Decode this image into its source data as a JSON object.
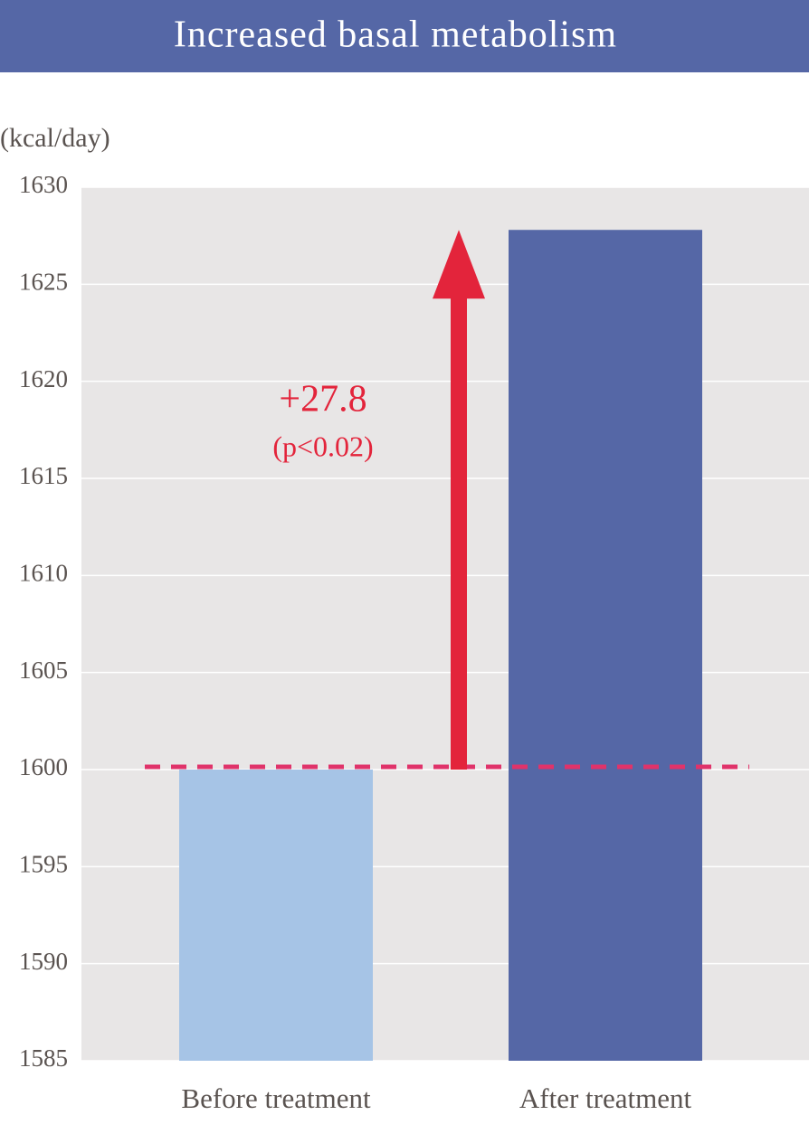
{
  "chart_data": {
    "type": "bar",
    "title": "Increased basal metabolism",
    "y_label": "(kcal/day)",
    "categories": [
      "Before treatment",
      "After treatment"
    ],
    "values": [
      1600,
      1627.8
    ],
    "colors": [
      "#a6c4e6",
      "#5567a6"
    ],
    "annotation": "+27.8",
    "annotation_note": "(p<0.02)",
    "ylim": [
      1585,
      1630
    ],
    "yticks": [
      1585,
      1590,
      1595,
      1600,
      1605,
      1610,
      1615,
      1620,
      1625,
      1630
    ],
    "grid": true
  }
}
